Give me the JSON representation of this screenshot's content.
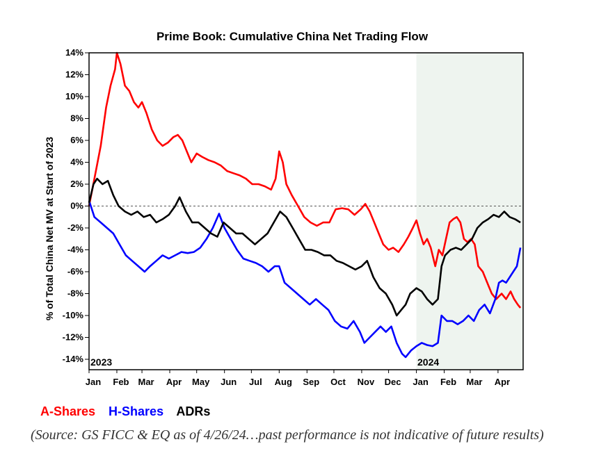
{
  "chart_data": {
    "type": "line",
    "title": "Prime Book: Cumulative China Net Trading Flow",
    "ylabel": "% of Total China Net MV at Start of 2023",
    "xlabel": "",
    "ylim": [
      -14,
      14
    ],
    "y_ticks": [
      "14%",
      "12%",
      "10%",
      "8%",
      "6%",
      "4%",
      "2%",
      "0%",
      "-2%",
      "-4%",
      "-6%",
      "-8%",
      "-10%",
      "-12%",
      "-14%"
    ],
    "x_ticks": [
      "Jan",
      "Feb",
      "Mar",
      "Apr",
      "May",
      "Jun",
      "Jul",
      "Aug",
      "Sep",
      "Oct",
      "Nov",
      "Dec",
      "Jan",
      "Feb",
      "Mar",
      "Apr"
    ],
    "year_labels": [
      "2023",
      "2024"
    ],
    "shaded_region": {
      "from": "2024-01-01",
      "to": "2024-04-26",
      "color": "#eef4ef"
    },
    "zero_line": "dashed",
    "x_range": [
      "2023-01-01",
      "2024-04-29"
    ],
    "series": [
      {
        "name": "A-Shares",
        "color": "#ff0000",
        "points": [
          [
            "2023-01-01",
            0.0
          ],
          [
            "2023-01-07",
            2.5
          ],
          [
            "2023-01-14",
            5.5
          ],
          [
            "2023-01-20",
            9.0
          ],
          [
            "2023-01-25",
            11.0
          ],
          [
            "2023-01-30",
            12.5
          ],
          [
            "2023-02-01",
            14.0
          ],
          [
            "2023-02-05",
            13.0
          ],
          [
            "2023-02-10",
            11.0
          ],
          [
            "2023-02-15",
            10.5
          ],
          [
            "2023-02-20",
            9.5
          ],
          [
            "2023-02-25",
            9.0
          ],
          [
            "2023-03-01",
            9.5
          ],
          [
            "2023-03-06",
            8.5
          ],
          [
            "2023-03-12",
            7.0
          ],
          [
            "2023-03-18",
            6.0
          ],
          [
            "2023-03-24",
            5.5
          ],
          [
            "2023-03-30",
            5.8
          ],
          [
            "2023-04-05",
            6.3
          ],
          [
            "2023-04-10",
            6.5
          ],
          [
            "2023-04-15",
            6.0
          ],
          [
            "2023-04-20",
            5.0
          ],
          [
            "2023-04-25",
            4.0
          ],
          [
            "2023-05-01",
            4.8
          ],
          [
            "2023-05-07",
            4.5
          ],
          [
            "2023-05-14",
            4.2
          ],
          [
            "2023-05-21",
            4.0
          ],
          [
            "2023-05-28",
            3.7
          ],
          [
            "2023-06-04",
            3.2
          ],
          [
            "2023-06-11",
            3.0
          ],
          [
            "2023-06-18",
            2.8
          ],
          [
            "2023-06-25",
            2.5
          ],
          [
            "2023-07-02",
            2.0
          ],
          [
            "2023-07-09",
            2.0
          ],
          [
            "2023-07-16",
            1.8
          ],
          [
            "2023-07-23",
            1.5
          ],
          [
            "2023-07-28",
            2.5
          ],
          [
            "2023-08-01",
            5.0
          ],
          [
            "2023-08-05",
            4.0
          ],
          [
            "2023-08-09",
            2.0
          ],
          [
            "2023-08-15",
            1.0
          ],
          [
            "2023-08-22",
            0.0
          ],
          [
            "2023-08-29",
            -1.0
          ],
          [
            "2023-09-05",
            -1.5
          ],
          [
            "2023-09-12",
            -1.8
          ],
          [
            "2023-09-19",
            -1.5
          ],
          [
            "2023-09-26",
            -1.5
          ],
          [
            "2023-10-03",
            -0.3
          ],
          [
            "2023-10-10",
            -0.2
          ],
          [
            "2023-10-17",
            -0.3
          ],
          [
            "2023-10-24",
            -0.8
          ],
          [
            "2023-10-31",
            -0.3
          ],
          [
            "2023-11-05",
            0.2
          ],
          [
            "2023-11-10",
            -0.5
          ],
          [
            "2023-11-15",
            -1.5
          ],
          [
            "2023-11-20",
            -2.5
          ],
          [
            "2023-11-25",
            -3.5
          ],
          [
            "2023-12-01",
            -4.0
          ],
          [
            "2023-12-06",
            -3.8
          ],
          [
            "2023-12-12",
            -4.2
          ],
          [
            "2023-12-18",
            -3.5
          ],
          [
            "2023-12-23",
            -2.8
          ],
          [
            "2023-12-28",
            -2.0
          ],
          [
            "2024-01-01",
            -1.3
          ],
          [
            "2024-01-05",
            -2.5
          ],
          [
            "2024-01-09",
            -3.5
          ],
          [
            "2024-01-13",
            -3.0
          ],
          [
            "2024-01-17",
            -3.8
          ],
          [
            "2024-01-22",
            -5.5
          ],
          [
            "2024-01-26",
            -4.0
          ],
          [
            "2024-01-30",
            -4.5
          ],
          [
            "2024-02-03",
            -3.0
          ],
          [
            "2024-02-07",
            -1.5
          ],
          [
            "2024-02-11",
            -1.2
          ],
          [
            "2024-02-15",
            -1.0
          ],
          [
            "2024-02-19",
            -1.5
          ],
          [
            "2024-02-23",
            -3.0
          ],
          [
            "2024-02-27",
            -3.3
          ],
          [
            "2024-03-02",
            -3.0
          ],
          [
            "2024-03-06",
            -3.5
          ],
          [
            "2024-03-10",
            -5.5
          ],
          [
            "2024-03-15",
            -6.0
          ],
          [
            "2024-03-20",
            -7.0
          ],
          [
            "2024-03-25",
            -8.0
          ],
          [
            "2024-03-30",
            -8.5
          ],
          [
            "2024-04-05",
            -8.0
          ],
          [
            "2024-04-10",
            -8.5
          ],
          [
            "2024-04-15",
            -7.8
          ],
          [
            "2024-04-19",
            -8.5
          ],
          [
            "2024-04-23",
            -9.0
          ],
          [
            "2024-04-26",
            -9.3
          ]
        ]
      },
      {
        "name": "H-Shares",
        "color": "#0000ff",
        "points": [
          [
            "2023-01-01",
            0.5
          ],
          [
            "2023-01-07",
            -1.0
          ],
          [
            "2023-01-14",
            -1.5
          ],
          [
            "2023-01-21",
            -2.0
          ],
          [
            "2023-01-28",
            -2.5
          ],
          [
            "2023-02-04",
            -3.5
          ],
          [
            "2023-02-11",
            -4.5
          ],
          [
            "2023-02-18",
            -5.0
          ],
          [
            "2023-02-25",
            -5.5
          ],
          [
            "2023-03-04",
            -6.0
          ],
          [
            "2023-03-10",
            -5.5
          ],
          [
            "2023-03-17",
            -5.0
          ],
          [
            "2023-03-24",
            -4.5
          ],
          [
            "2023-03-31",
            -4.8
          ],
          [
            "2023-04-07",
            -4.5
          ],
          [
            "2023-04-14",
            -4.2
          ],
          [
            "2023-04-21",
            -4.3
          ],
          [
            "2023-04-28",
            -4.2
          ],
          [
            "2023-05-05",
            -3.8
          ],
          [
            "2023-05-12",
            -3.0
          ],
          [
            "2023-05-19",
            -2.0
          ],
          [
            "2023-05-26",
            -0.7
          ],
          [
            "2023-06-01",
            -2.0
          ],
          [
            "2023-06-08",
            -3.0
          ],
          [
            "2023-06-15",
            -4.0
          ],
          [
            "2023-06-22",
            -4.8
          ],
          [
            "2023-06-29",
            -5.0
          ],
          [
            "2023-07-06",
            -5.2
          ],
          [
            "2023-07-13",
            -5.5
          ],
          [
            "2023-07-20",
            -6.0
          ],
          [
            "2023-07-27",
            -5.5
          ],
          [
            "2023-08-01",
            -5.5
          ],
          [
            "2023-08-07",
            -7.0
          ],
          [
            "2023-08-14",
            -7.5
          ],
          [
            "2023-08-21",
            -8.0
          ],
          [
            "2023-08-28",
            -8.5
          ],
          [
            "2023-09-04",
            -9.0
          ],
          [
            "2023-09-11",
            -8.5
          ],
          [
            "2023-09-18",
            -9.0
          ],
          [
            "2023-09-25",
            -9.5
          ],
          [
            "2023-10-02",
            -10.5
          ],
          [
            "2023-10-09",
            -11.0
          ],
          [
            "2023-10-16",
            -11.2
          ],
          [
            "2023-10-23",
            -10.5
          ],
          [
            "2023-10-30",
            -11.5
          ],
          [
            "2023-11-04",
            -12.5
          ],
          [
            "2023-11-10",
            -12.0
          ],
          [
            "2023-11-16",
            -11.5
          ],
          [
            "2023-11-22",
            -11.0
          ],
          [
            "2023-11-28",
            -11.5
          ],
          [
            "2023-12-04",
            -11.0
          ],
          [
            "2023-12-10",
            -12.5
          ],
          [
            "2023-12-16",
            -13.5
          ],
          [
            "2023-12-20",
            -13.8
          ],
          [
            "2023-12-26",
            -13.2
          ],
          [
            "2024-01-01",
            -12.8
          ],
          [
            "2024-01-07",
            -12.5
          ],
          [
            "2024-01-13",
            -12.7
          ],
          [
            "2024-01-19",
            -12.8
          ],
          [
            "2024-01-25",
            -12.5
          ],
          [
            "2024-01-29",
            -10.0
          ],
          [
            "2024-02-04",
            -10.5
          ],
          [
            "2024-02-10",
            -10.5
          ],
          [
            "2024-02-16",
            -10.8
          ],
          [
            "2024-02-22",
            -10.5
          ],
          [
            "2024-02-28",
            -10.0
          ],
          [
            "2024-03-05",
            -10.5
          ],
          [
            "2024-03-11",
            -9.5
          ],
          [
            "2024-03-17",
            -9.0
          ],
          [
            "2024-03-23",
            -9.8
          ],
          [
            "2024-03-29",
            -8.5
          ],
          [
            "2024-04-02",
            -7.0
          ],
          [
            "2024-04-06",
            -6.8
          ],
          [
            "2024-04-10",
            -7.0
          ],
          [
            "2024-04-14",
            -6.5
          ],
          [
            "2024-04-18",
            -6.0
          ],
          [
            "2024-04-22",
            -5.5
          ],
          [
            "2024-04-26",
            -3.8
          ]
        ]
      },
      {
        "name": "ADRs",
        "color": "#000000",
        "points": [
          [
            "2023-01-01",
            0.3
          ],
          [
            "2023-01-06",
            2.0
          ],
          [
            "2023-01-10",
            2.5
          ],
          [
            "2023-01-16",
            2.0
          ],
          [
            "2023-01-22",
            2.3
          ],
          [
            "2023-01-28",
            1.0
          ],
          [
            "2023-02-03",
            0.0
          ],
          [
            "2023-02-10",
            -0.5
          ],
          [
            "2023-02-17",
            -0.8
          ],
          [
            "2023-02-24",
            -0.5
          ],
          [
            "2023-03-03",
            -1.0
          ],
          [
            "2023-03-10",
            -0.8
          ],
          [
            "2023-03-17",
            -1.5
          ],
          [
            "2023-03-24",
            -1.2
          ],
          [
            "2023-03-31",
            -0.8
          ],
          [
            "2023-04-07",
            0.0
          ],
          [
            "2023-04-12",
            0.8
          ],
          [
            "2023-04-19",
            -0.5
          ],
          [
            "2023-04-26",
            -1.5
          ],
          [
            "2023-05-03",
            -1.5
          ],
          [
            "2023-05-10",
            -2.0
          ],
          [
            "2023-05-17",
            -2.5
          ],
          [
            "2023-05-24",
            -2.8
          ],
          [
            "2023-05-31",
            -1.5
          ],
          [
            "2023-06-07",
            -2.0
          ],
          [
            "2023-06-14",
            -2.5
          ],
          [
            "2023-06-21",
            -2.5
          ],
          [
            "2023-06-28",
            -3.0
          ],
          [
            "2023-07-05",
            -3.5
          ],
          [
            "2023-07-12",
            -3.0
          ],
          [
            "2023-07-19",
            -2.5
          ],
          [
            "2023-07-26",
            -1.5
          ],
          [
            "2023-08-02",
            -0.5
          ],
          [
            "2023-08-09",
            -1.0
          ],
          [
            "2023-08-16",
            -2.0
          ],
          [
            "2023-08-23",
            -3.0
          ],
          [
            "2023-08-30",
            -4.0
          ],
          [
            "2023-09-06",
            -4.0
          ],
          [
            "2023-09-13",
            -4.2
          ],
          [
            "2023-09-20",
            -4.5
          ],
          [
            "2023-09-27",
            -4.5
          ],
          [
            "2023-10-04",
            -5.0
          ],
          [
            "2023-10-11",
            -5.2
          ],
          [
            "2023-10-18",
            -5.5
          ],
          [
            "2023-10-25",
            -5.8
          ],
          [
            "2023-11-01",
            -5.5
          ],
          [
            "2023-11-07",
            -5.0
          ],
          [
            "2023-11-14",
            -6.5
          ],
          [
            "2023-11-21",
            -7.5
          ],
          [
            "2023-11-28",
            -8.0
          ],
          [
            "2023-12-05",
            -9.0
          ],
          [
            "2023-12-10",
            -10.0
          ],
          [
            "2023-12-15",
            -9.5
          ],
          [
            "2023-12-20",
            -9.0
          ],
          [
            "2023-12-25",
            -8.0
          ],
          [
            "2024-01-01",
            -7.5
          ],
          [
            "2024-01-07",
            -7.8
          ],
          [
            "2024-01-13",
            -8.5
          ],
          [
            "2024-01-19",
            -9.0
          ],
          [
            "2024-01-25",
            -8.5
          ],
          [
            "2024-01-29",
            -5.5
          ],
          [
            "2024-02-02",
            -4.5
          ],
          [
            "2024-02-08",
            -4.0
          ],
          [
            "2024-02-14",
            -3.8
          ],
          [
            "2024-02-20",
            -4.0
          ],
          [
            "2024-02-26",
            -3.5
          ],
          [
            "2024-03-03",
            -3.0
          ],
          [
            "2024-03-09",
            -2.0
          ],
          [
            "2024-03-15",
            -1.5
          ],
          [
            "2024-03-21",
            -1.2
          ],
          [
            "2024-03-27",
            -0.8
          ],
          [
            "2024-04-02",
            -1.0
          ],
          [
            "2024-04-08",
            -0.5
          ],
          [
            "2024-04-14",
            -1.0
          ],
          [
            "2024-04-20",
            -1.2
          ],
          [
            "2024-04-26",
            -1.5
          ]
        ]
      }
    ]
  },
  "legend": {
    "a_shares": "A-Shares",
    "h_shares": "H-Shares",
    "adrs": "ADRs"
  },
  "source_note": "(Source: GS FICC & EQ as of 4/26/24…past performance is not indicative of future results)",
  "colors": {
    "a_shares": "#ff0000",
    "h_shares": "#0000ff",
    "adrs": "#000000",
    "shade": "#eef4ef"
  }
}
